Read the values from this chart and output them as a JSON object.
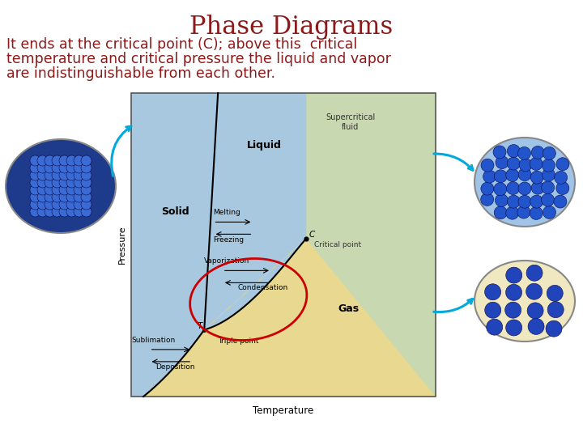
{
  "title": "Phase Diagrams",
  "title_color": "#8B1A1A",
  "title_fontsize": 22,
  "body_text_line1": "It ends at the critical point (C); above this  critical",
  "body_text_line2": "temperature and critical pressure the liquid and vapor",
  "body_text_line3": "are indistinguishable from each other.",
  "body_color": "#8B1A1A",
  "body_fontsize": 12.5,
  "bg_color": "#FFFFFF",
  "gas_color": "#E8D890",
  "solid_liquid_color": "#A8C8E0",
  "supercrit_color": "#C8D8B0",
  "border_color": "#555555",
  "solid_bg": "#1E3A8A",
  "solid_dot": "#4169E1",
  "liquid_bg": "#A0C4E8",
  "liquid_dot": "#2255CC",
  "gas_bg": "#F0E8C0",
  "gas_dot": "#2244BB",
  "arrow_color": "#00AADD",
  "red_oval_color": "#CC0000"
}
